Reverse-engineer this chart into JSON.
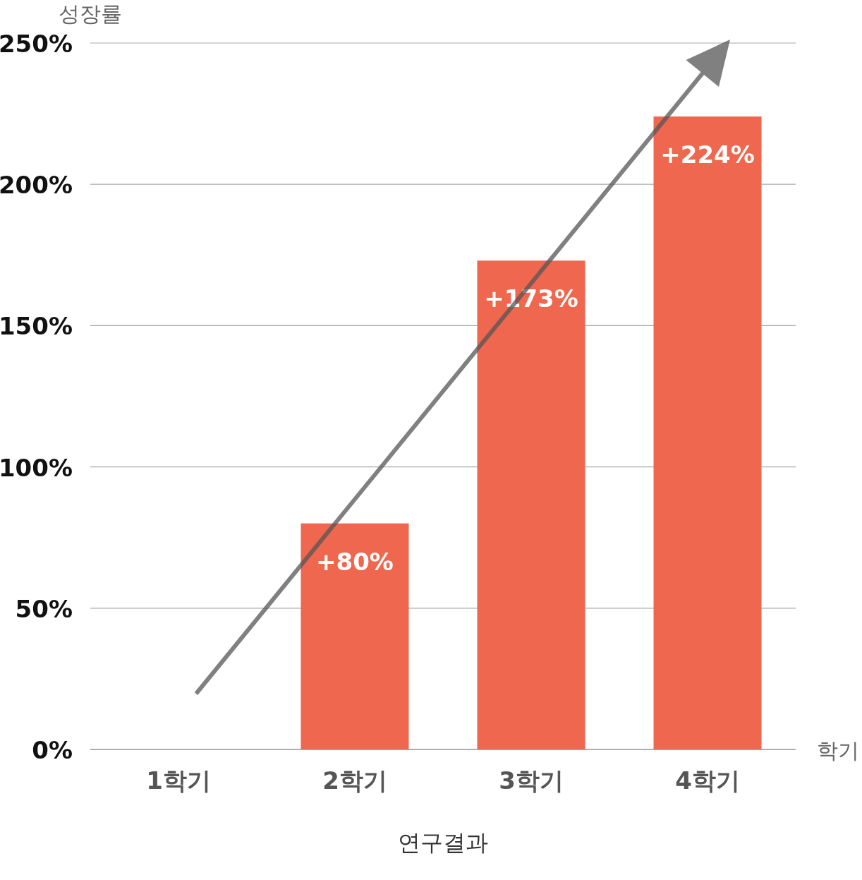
{
  "chart_data": {
    "type": "bar",
    "categories": [
      "1학기",
      "2학기",
      "3학기",
      "4학기"
    ],
    "values": [
      0,
      80,
      173,
      224
    ],
    "value_labels": [
      null,
      "+80%",
      "+173%",
      "+224%"
    ],
    "color": "#ef674e",
    "ylabel": "성장률",
    "xlabel": "학기",
    "ylim": [
      0,
      250
    ],
    "yticks": [
      {
        "value": 0,
        "label": "0%"
      },
      {
        "value": 50,
        "label": "50%"
      },
      {
        "value": 100,
        "label": "100%"
      },
      {
        "value": 150,
        "label": "150%"
      },
      {
        "value": 200,
        "label": "200%"
      },
      {
        "value": 250,
        "label": "250%"
      }
    ],
    "grid": "y",
    "annotations": [
      "연구결과"
    ]
  }
}
